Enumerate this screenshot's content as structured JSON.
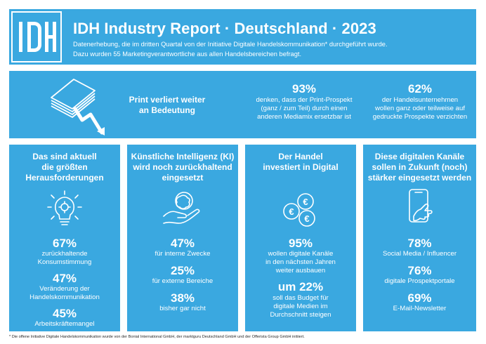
{
  "header": {
    "logo_text": "IDH",
    "title": "IDH Industry Report · Deutschland · 2023",
    "subtitle_line1": "Datenerhebung, die im dritten Quartal von der Initiative Digitale Handelskommunikation* durchgeführt wurde.",
    "subtitle_line2": "Dazu wurden 55 Marketingverantwortliche aus allen Handelsbereichen befragt."
  },
  "summary": {
    "headline_line1": "Print verliert weiter",
    "headline_line2": "an Bedeutung",
    "stat1_value": "93%",
    "stat1_line1": "denken, dass der Print-Prospekt",
    "stat1_line2": "(ganz / zum Teil) durch einen",
    "stat1_line3": "anderen Mediamix ersetzbar ist",
    "stat2_value": "62%",
    "stat2_line1": "der Handelsunternehmen",
    "stat2_line2": "wollen ganz oder teilweise auf",
    "stat2_line3": "gedruckte Prospekte verzichten"
  },
  "columns": [
    {
      "heading": [
        "Das sind aktuell",
        "die größten",
        "Herausforderungen"
      ],
      "icon": "lightbulb-gears-icon",
      "items": [
        {
          "value": "67%",
          "label": [
            "zurückhaltende",
            "Konsumstimmung"
          ]
        },
        {
          "value": "47%",
          "label": [
            "Veränderung der",
            "Handelskommunikation"
          ]
        },
        {
          "value": "45%",
          "label": [
            "Arbeitskräftemangel"
          ]
        }
      ]
    },
    {
      "heading": [
        "Künstliche Intelligenz (KI)",
        "wird noch zurückhaltend",
        "eingesetzt"
      ],
      "icon": "hand-ai-icon",
      "items": [
        {
          "value": "47%",
          "label": [
            "für interne Zwecke"
          ]
        },
        {
          "value": "25%",
          "label": [
            "für externe Bereiche"
          ]
        },
        {
          "value": "38%",
          "label": [
            "bisher gar nicht"
          ]
        }
      ]
    },
    {
      "heading": [
        "Der Handel",
        "investiert in Digital"
      ],
      "icon": "euro-coins-icon",
      "items": [
        {
          "value": "95%",
          "label": [
            "wollen digitale Kanäle",
            "in den nächsten Jahren",
            "weiter ausbauen"
          ]
        },
        {
          "value": "um 22%",
          "label": [
            "soll das Budget für",
            "digitale Medien im",
            "Durchschnitt steigen"
          ]
        }
      ]
    },
    {
      "heading": [
        "Diese digitalen Kanäle",
        "sollen in Zukunft (noch)",
        "stärker eingesetzt werden"
      ],
      "icon": "smartphone-hand-icon",
      "items": [
        {
          "value": "78%",
          "label": [
            "Social Media / Influencer"
          ]
        },
        {
          "value": "76%",
          "label": [
            "digitale Prospektportale"
          ]
        },
        {
          "value": "69%",
          "label": [
            "E-Mail-Newsletter"
          ]
        }
      ]
    }
  ],
  "footnote": "* Die offene Initiative Digitale Handelskommunikation wurde von der Bonial International GmbH, der marktguru Deutschland GmbH und der Offerista Group GmbH initiiert.",
  "colors": {
    "panel": "#3aa8e0",
    "white": "#ffffff"
  }
}
